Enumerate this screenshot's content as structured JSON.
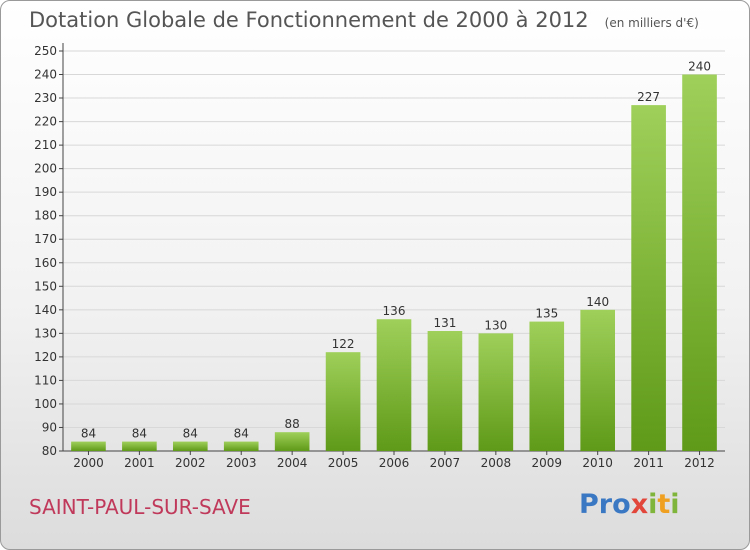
{
  "title": "Dotation Globale de Fonctionnement de 2000 à 2012",
  "unit_note": "(en milliers d'€)",
  "commune": "SAINT-PAUL-SUR-SAVE",
  "logo": {
    "text": "Proxiti",
    "letter_colors": [
      "#3a78c4",
      "#3a78c4",
      "#3a78c4",
      "#e2463a",
      "#7fb53a",
      "#f0a020",
      "#7fb53a"
    ]
  },
  "colors": {
    "bar_top": "#9fd05a",
    "bar_bottom": "#5f9a18",
    "axis": "#444444",
    "grid": "#d8d8d8"
  },
  "chart_data": {
    "type": "bar",
    "categories": [
      "2000",
      "2001",
      "2002",
      "2003",
      "2004",
      "2005",
      "2006",
      "2007",
      "2008",
      "2009",
      "2010",
      "2011",
      "2012"
    ],
    "values": [
      84,
      84,
      84,
      84,
      88,
      122,
      136,
      131,
      130,
      135,
      140,
      227,
      240
    ],
    "ylim": [
      80,
      250
    ],
    "yticks": [
      80,
      90,
      100,
      110,
      120,
      130,
      140,
      150,
      160,
      170,
      180,
      190,
      200,
      210,
      220,
      230,
      240,
      250
    ],
    "grid": true
  }
}
